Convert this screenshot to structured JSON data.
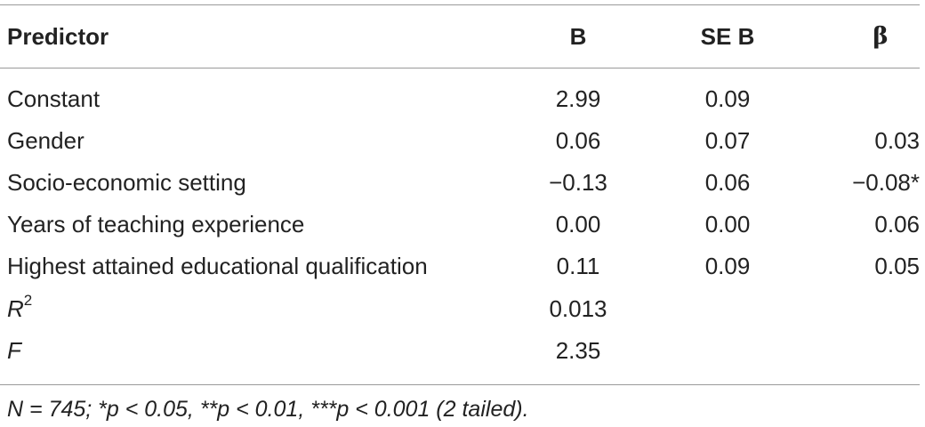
{
  "table": {
    "headers": {
      "predictor": "Predictor",
      "b": "B",
      "se_b": "SE B",
      "beta": "β"
    },
    "rows": [
      {
        "predictor": "Constant",
        "b": "2.99",
        "se_b": "0.09",
        "beta": ""
      },
      {
        "predictor": "Gender",
        "b": "0.06",
        "se_b": "0.07",
        "beta": "0.03"
      },
      {
        "predictor": "Socio-economic setting",
        "b": "−0.13",
        "se_b": "0.06",
        "beta": "−0.08*"
      },
      {
        "predictor": "Years of teaching experience",
        "b": "0.00",
        "se_b": "0.00",
        "beta": "0.06"
      },
      {
        "predictor": "Highest attained educational qualification",
        "b": "0.11",
        "se_b": "0.09",
        "beta": "0.05"
      }
    ],
    "r_squared": {
      "label": "R",
      "label_sup": "2",
      "b": "0.013"
    },
    "f_stat": {
      "label": "F",
      "b": "2.35"
    },
    "note": "N = 745; *p < 0.05, **p < 0.01, ***p < 0.001 (2 tailed)."
  }
}
